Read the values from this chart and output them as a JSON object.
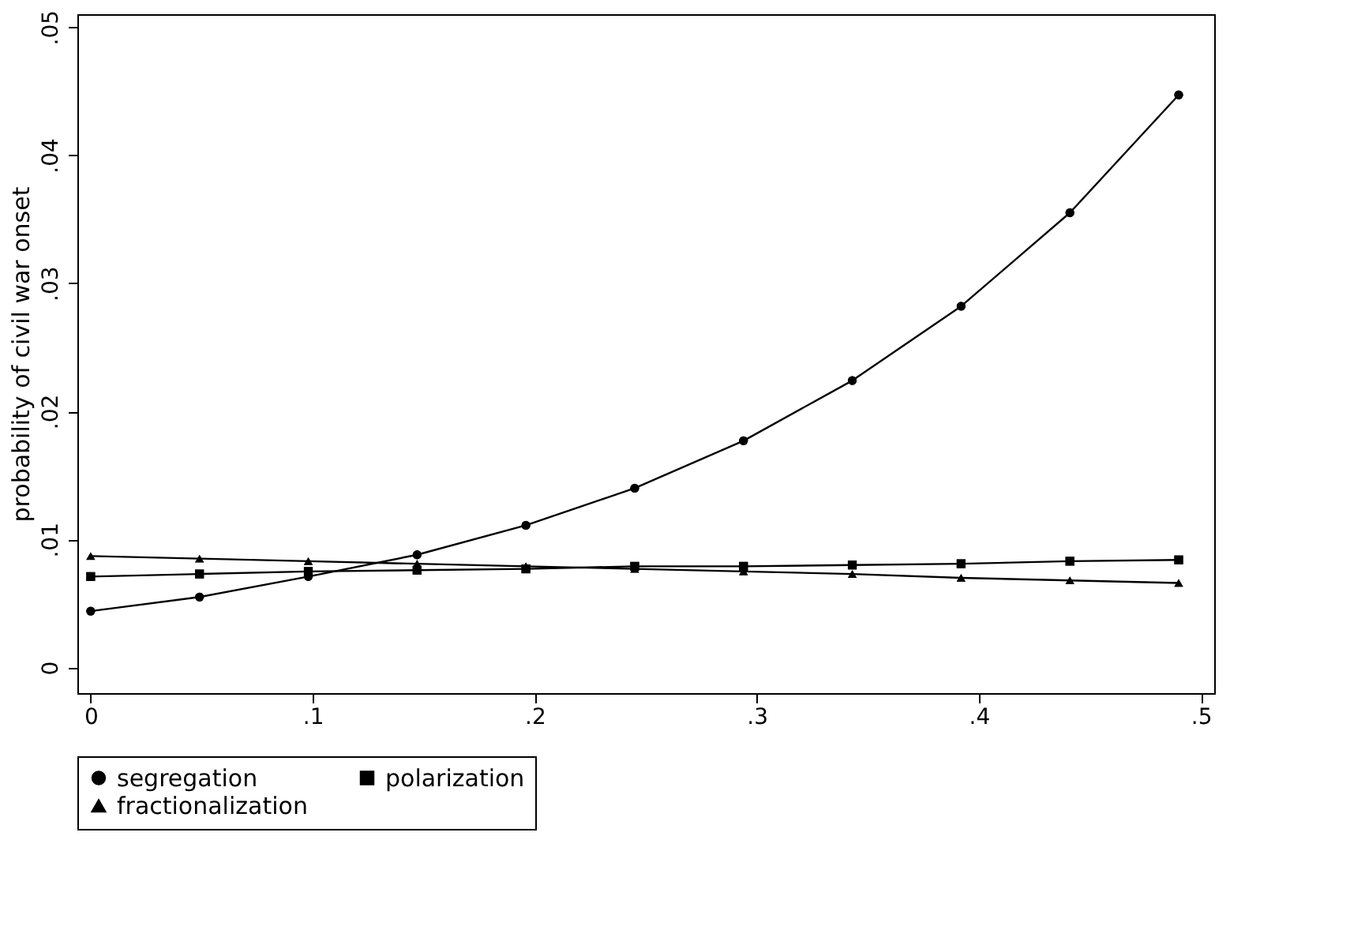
{
  "chart_data": {
    "type": "line",
    "ylabel": "probability of civil war onset",
    "x": [
      0,
      0.049,
      0.098,
      0.147,
      0.196,
      0.245,
      0.294,
      0.343,
      0.392,
      0.441,
      0.49
    ],
    "series": [
      {
        "name": "segregation",
        "color": "#000000",
        "marker": "circle",
        "values": [
          0.0044,
          0.0055,
          0.0071,
          0.0088,
          0.0111,
          0.014,
          0.0177,
          0.0224,
          0.0282,
          0.0355,
          0.0447
        ]
      },
      {
        "name": "polarization",
        "color": "#000000",
        "marker": "square",
        "values": [
          0.0071,
          0.0073,
          0.0075,
          0.0076,
          0.0077,
          0.0079,
          0.0079,
          0.008,
          0.0081,
          0.0083,
          0.0084
        ]
      },
      {
        "name": "fractionalization",
        "color": "#000000",
        "marker": "triangle",
        "values": [
          0.0087,
          0.0085,
          0.0083,
          0.0081,
          0.0079,
          0.0077,
          0.0075,
          0.0073,
          0.007,
          0.0068,
          0.0066
        ]
      }
    ],
    "xlim": [
      -0.006,
      0.506
    ],
    "ylim": [
      -0.002,
      0.051
    ],
    "xticks": [
      0,
      {
        "value": 0.1,
        "label": ".1"
      },
      {
        "value": 0.2,
        "label": ".2"
      },
      {
        "value": 0.3,
        "label": ".3"
      },
      {
        "value": 0.4,
        "label": ".4"
      },
      {
        "value": 0.5,
        "label": ".5"
      }
    ],
    "yticks": [
      0,
      {
        "value": 0.01,
        "label": ".01"
      },
      {
        "value": 0.02,
        "label": ".02"
      },
      {
        "value": 0.03,
        "label": ".03"
      },
      {
        "value": 0.04,
        "label": ".04"
      },
      {
        "value": 0.05,
        "label": ".05"
      }
    ],
    "grid": false,
    "legend": "bottom",
    "line_style": "solid"
  }
}
